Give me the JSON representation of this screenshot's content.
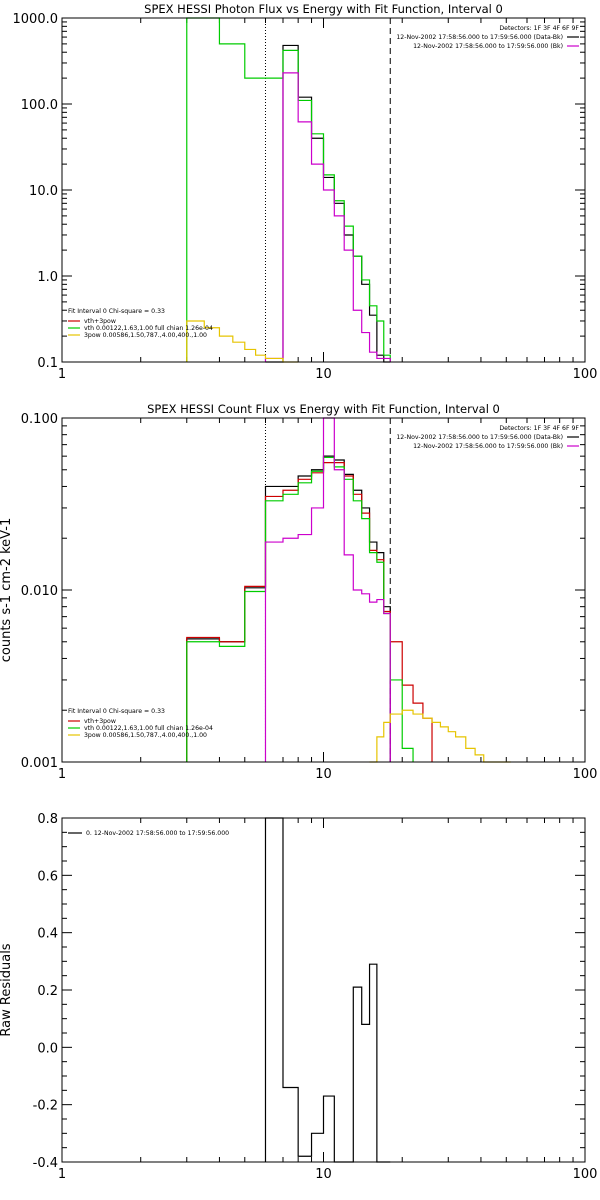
{
  "chart_data": [
    {
      "type": "line",
      "title": "SPEX HESSI Photon Flux vs Energy with Fit Function, Interval 0",
      "xlabel": "",
      "ylabel": "",
      "xscale": "log",
      "yscale": "log",
      "xlim": [
        1,
        100
      ],
      "ylim": [
        0.1,
        1000
      ],
      "x_ticks": [
        "1",
        "10",
        "100"
      ],
      "y_ticks": [
        "0.1",
        "1.0",
        "10.0",
        "100.0",
        "1000.0"
      ],
      "header_lines": [
        "Detectors: 1F 3F 4F 6F 9F",
        "12-Nov-2002 17:58:56.000 to 17:59:56.000 (Data-Bk)",
        "12-Nov-2002 17:58:56.000 to 17:59:56.000 (Bk)"
      ],
      "legend_lines": [
        "Fit Interval 0   Chi-square = 0.33",
        "vth+3pow",
        "vth 0.00122,1.63,1.00  full chian 1.26e-04",
        "3pow 0.00586,1.50,787.,4.00,400.,1.00"
      ],
      "legend_colors": [
        "#000000",
        "#cc0000",
        "#00cc00",
        "#e6c400"
      ],
      "vlines": [
        {
          "x": 6.0,
          "style": "dotted",
          "color": "#000000"
        },
        {
          "x": 18.0,
          "style": "dashed",
          "color": "#000000"
        }
      ],
      "series": [
        {
          "color": "#000000",
          "edges": [
            6,
            7,
            8,
            9,
            10,
            11,
            12,
            13,
            14,
            15,
            16,
            17,
            18
          ],
          "values": [
            0.1,
            480,
            120,
            40,
            14,
            7,
            3,
            1.7,
            0.8,
            0.35,
            0.12,
            0.1
          ]
        },
        {
          "color": "#00cc00",
          "edges": [
            3,
            3.5,
            4,
            5,
            6,
            7,
            8,
            9,
            10,
            11,
            12,
            13,
            14,
            15,
            16,
            17,
            18
          ],
          "values": [
            1000,
            1000,
            500,
            200,
            200,
            420,
            110,
            45,
            15,
            7.5,
            3.8,
            1.7,
            0.9,
            0.45,
            0.3,
            0.12
          ]
        },
        {
          "color": "#cc00cc",
          "edges": [
            6,
            7,
            8,
            9,
            10,
            11,
            12,
            13,
            14,
            15,
            16,
            17,
            18
          ],
          "values": [
            0.11,
            230,
            62,
            20,
            10,
            5,
            2,
            0.4,
            0.22,
            0.13,
            0.11,
            0.11
          ]
        },
        {
          "color": "#e6c400",
          "edges": [
            3,
            3.5,
            4,
            4.5,
            5,
            5.5,
            6,
            7,
            8
          ],
          "values": [
            0.3,
            0.25,
            0.2,
            0.17,
            0.14,
            0.12,
            0.11,
            0.1
          ]
        }
      ]
    },
    {
      "type": "line",
      "title": "SPEX HESSI Count Flux vs Energy with Fit Function, Interval 0",
      "xlabel": "",
      "ylabel": "counts s-1 cm-2 keV-1",
      "xscale": "log",
      "yscale": "log",
      "xlim": [
        1,
        100
      ],
      "ylim": [
        0.001,
        0.1
      ],
      "x_ticks": [
        "1",
        "10",
        "100"
      ],
      "y_ticks": [
        "0.001",
        "0.010",
        "0.100"
      ],
      "header_lines": [
        "Detectors: 1F 3F 4F 6F 9F",
        "12-Nov-2002 17:58:56.000 to 17:59:56.000 (Data-Bk)",
        "12-Nov-2002 17:58:56.000 to 17:59:56.000 (Bk)"
      ],
      "legend_lines": [
        "Fit Interval 0   Chi-square = 0.33",
        "vth+3pow",
        "vth 0.00122,1.63,1.00  full chian 1.26e-04",
        "3pow 0.00586,1.50,787.,4.00,400.,1.00"
      ],
      "legend_colors": [
        "#000000",
        "#cc0000",
        "#00cc00",
        "#e6c400"
      ],
      "vlines": [
        {
          "x": 6.0,
          "style": "dotted",
          "color": "#000000"
        },
        {
          "x": 18.0,
          "style": "dashed",
          "color": "#000000"
        }
      ],
      "series": [
        {
          "color": "#000000",
          "edges": [
            3,
            4,
            5,
            6,
            7,
            8,
            9,
            10,
            11,
            12,
            13,
            14,
            15,
            16,
            17,
            18
          ],
          "values": [
            0.0052,
            0.005,
            0.0103,
            0.04,
            0.04,
            0.046,
            0.05,
            0.06,
            0.057,
            0.047,
            0.038,
            0.03,
            0.019,
            0.0165,
            0.008
          ]
        },
        {
          "color": "#cc0000",
          "edges": [
            3,
            4,
            5,
            6,
            7,
            8,
            9,
            10,
            11,
            12,
            13,
            14,
            15,
            16,
            17,
            18,
            20,
            22,
            24,
            26
          ],
          "values": [
            0.0053,
            0.005,
            0.0105,
            0.035,
            0.038,
            0.044,
            0.048,
            0.055,
            0.055,
            0.046,
            0.036,
            0.028,
            0.017,
            0.015,
            0.0075,
            0.005,
            0.0028,
            0.0022,
            0.0018
          ]
        },
        {
          "color": "#00cc00",
          "edges": [
            3,
            4,
            5,
            6,
            7,
            8,
            9,
            10,
            11,
            12,
            13,
            14,
            15,
            16,
            17,
            18,
            20,
            22
          ],
          "values": [
            0.005,
            0.0047,
            0.0098,
            0.033,
            0.036,
            0.042,
            0.049,
            0.059,
            0.052,
            0.044,
            0.033,
            0.026,
            0.0165,
            0.0145,
            0.0073,
            0.003,
            0.0012
          ]
        },
        {
          "color": "#cc00cc",
          "edges": [
            6,
            7,
            8,
            9,
            10,
            11,
            12,
            13,
            14,
            15,
            16,
            17,
            18
          ],
          "values": [
            0.019,
            0.02,
            0.021,
            0.03,
            0.1,
            0.05,
            0.016,
            0.01,
            0.0095,
            0.0085,
            0.0088,
            0.0073
          ]
        },
        {
          "color": "#e6c400",
          "edges": [
            15,
            16,
            17,
            18,
            20,
            22,
            24,
            26,
            28,
            30,
            32,
            35,
            38,
            41,
            44,
            48,
            52
          ],
          "values": [
            0.001,
            0.0014,
            0.0017,
            0.0019,
            0.002,
            0.0019,
            0.0018,
            0.0017,
            0.0016,
            0.0015,
            0.0014,
            0.0012,
            0.0011,
            0.001,
            0.001,
            0.001
          ]
        }
      ]
    },
    {
      "type": "line",
      "title": "",
      "xlabel": "",
      "ylabel": "Raw Residuals",
      "xscale": "log",
      "yscale": "linear",
      "xlim": [
        1,
        100
      ],
      "ylim": [
        -0.4,
        0.8
      ],
      "x_ticks": [
        "1",
        "10",
        "100"
      ],
      "y_ticks": [
        "-0.4",
        "-0.2",
        "0.0",
        "0.2",
        "0.4",
        "0.6",
        "0.8"
      ],
      "legend_lines": [
        "0. 12-Nov-2002 17:58:56.000 to 17:59:56.000"
      ],
      "legend_colors": [
        "#000000"
      ],
      "series": [
        {
          "color": "#000000",
          "edges": [
            6,
            7,
            8,
            9,
            10,
            11,
            12,
            13,
            14,
            15,
            16,
            17,
            18
          ],
          "values": [
            0.8,
            -0.14,
            -0.38,
            -0.3,
            -0.17,
            -0.4,
            -0.4,
            0.21,
            0.08,
            0.29,
            -0.4,
            -0.4
          ]
        }
      ]
    }
  ]
}
